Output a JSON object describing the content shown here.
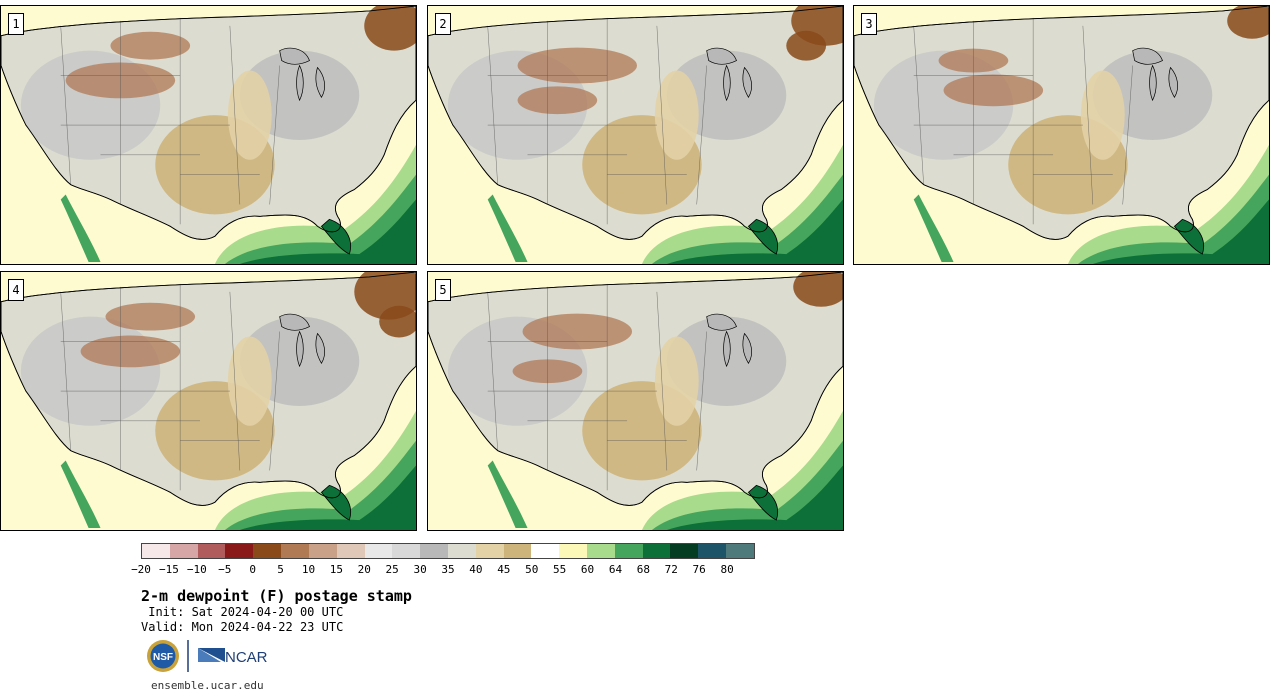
{
  "members": [
    {
      "label": "1"
    },
    {
      "label": "2"
    },
    {
      "label": "3"
    },
    {
      "label": "4"
    },
    {
      "label": "5"
    }
  ],
  "colorbar": {
    "colors": [
      "#f6e8e8",
      "#d6a6a6",
      "#b05c5c",
      "#8a1a1a",
      "#8a4a1a",
      "#b07a55",
      "#c9a088",
      "#e0c8b8",
      "#e8e8e8",
      "#d8d8d8",
      "#b8b8b8",
      "#dcdcd0",
      "#e2d2a6",
      "#cdb47a",
      "#ffffff",
      "#fcf9b8",
      "#a8db8c",
      "#46a55c",
      "#0c7038",
      "#053d23",
      "#1e5468",
      "#4f7a7c"
    ],
    "ticks": [
      "−20",
      "−15",
      "−10",
      "−5",
      "0",
      "5",
      "10",
      "15",
      "20",
      "25",
      "30",
      "35",
      "40",
      "45",
      "50",
      "55",
      "60",
      "64",
      "68",
      "72",
      "76",
      "80"
    ]
  },
  "title": "2-m dewpoint (F) postage stamp",
  "init_line": " Init: Sat 2024-04-20 00 UTC",
  "valid_line": "Valid: Mon 2024-04-22 23 UTC",
  "logos": {
    "nsf": "NSF",
    "ncar": "NCAR"
  },
  "footer": "ensemble.ucar.edu"
}
